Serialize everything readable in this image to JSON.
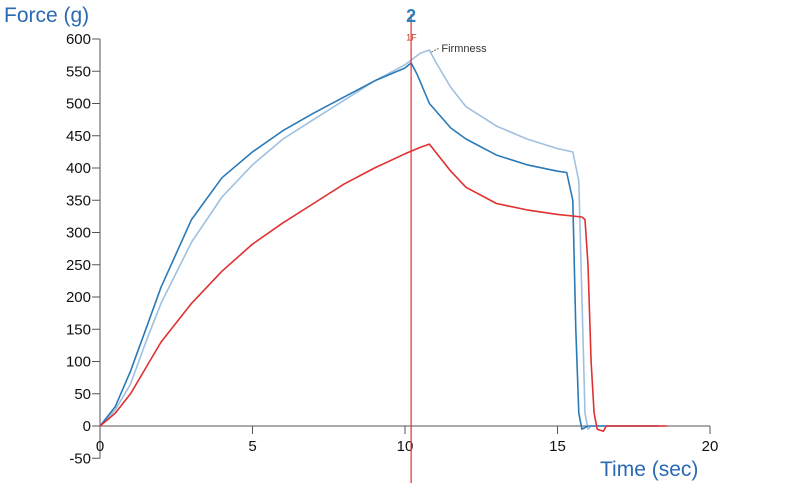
{
  "chart_data": {
    "type": "line",
    "title": "",
    "ylabel": "Force (g)",
    "xlabel": "Time (sec)",
    "xlim": [
      0,
      20
    ],
    "ylim": [
      -50,
      600
    ],
    "x_ticks": [
      0,
      5,
      10,
      15,
      20
    ],
    "y_ticks": [
      -50,
      0,
      50,
      100,
      150,
      200,
      250,
      300,
      350,
      400,
      450,
      500,
      550,
      600
    ],
    "grid": false,
    "series": [
      {
        "color": "#9fc0e0",
        "points": [
          [
            0,
            0
          ],
          [
            0.5,
            25
          ],
          [
            1,
            65
          ],
          [
            1.5,
            130
          ],
          [
            2,
            190
          ],
          [
            3,
            285
          ],
          [
            4,
            355
          ],
          [
            5,
            405
          ],
          [
            6,
            445
          ],
          [
            7,
            475
          ],
          [
            8,
            505
          ],
          [
            9,
            535
          ],
          [
            10,
            560
          ],
          [
            10.5,
            578
          ],
          [
            10.8,
            583
          ],
          [
            11,
            565
          ],
          [
            11.5,
            525
          ],
          [
            12,
            495
          ],
          [
            13,
            465
          ],
          [
            14,
            445
          ],
          [
            15,
            430
          ],
          [
            15.5,
            425
          ],
          [
            15.7,
            380
          ],
          [
            15.8,
            200
          ],
          [
            15.9,
            20
          ],
          [
            16.0,
            -5
          ],
          [
            16.1,
            0
          ],
          [
            18.5,
            0
          ]
        ]
      },
      {
        "color": "#2a7ab8",
        "points": [
          [
            0,
            0
          ],
          [
            0.5,
            30
          ],
          [
            1,
            85
          ],
          [
            1.5,
            150
          ],
          [
            2,
            215
          ],
          [
            3,
            320
          ],
          [
            4,
            385
          ],
          [
            5,
            425
          ],
          [
            6,
            458
          ],
          [
            7,
            485
          ],
          [
            8,
            510
          ],
          [
            9,
            535
          ],
          [
            10,
            555
          ],
          [
            10.2,
            563
          ],
          [
            10.4,
            545
          ],
          [
            10.8,
            500
          ],
          [
            11.5,
            462
          ],
          [
            12,
            445
          ],
          [
            13,
            420
          ],
          [
            14,
            405
          ],
          [
            15,
            395
          ],
          [
            15.3,
            393
          ],
          [
            15.5,
            350
          ],
          [
            15.6,
            150
          ],
          [
            15.7,
            20
          ],
          [
            15.8,
            -5
          ],
          [
            16.0,
            0
          ],
          [
            18.3,
            0
          ]
        ]
      },
      {
        "color": "#e03030",
        "points": [
          [
            0,
            0
          ],
          [
            0.5,
            20
          ],
          [
            1,
            50
          ],
          [
            1.5,
            90
          ],
          [
            2,
            130
          ],
          [
            3,
            190
          ],
          [
            4,
            240
          ],
          [
            5,
            282
          ],
          [
            6,
            315
          ],
          [
            7,
            345
          ],
          [
            8,
            375
          ],
          [
            9,
            400
          ],
          [
            10,
            422
          ],
          [
            10.5,
            432
          ],
          [
            10.8,
            437
          ],
          [
            11,
            425
          ],
          [
            11.5,
            395
          ],
          [
            12,
            370
          ],
          [
            13,
            345
          ],
          [
            14,
            335
          ],
          [
            15,
            328
          ],
          [
            15.8,
            324
          ],
          [
            15.9,
            320
          ],
          [
            16.0,
            250
          ],
          [
            16.1,
            100
          ],
          [
            16.2,
            20
          ],
          [
            16.3,
            -5
          ],
          [
            16.5,
            -8
          ],
          [
            16.6,
            0
          ],
          [
            18.6,
            0
          ]
        ]
      }
    ],
    "markers": [
      {
        "x": 10.2,
        "label": "2",
        "color": "#e03030"
      }
    ],
    "annotations": [
      {
        "text": "Firmness",
        "x": 10.8,
        "y": 583
      },
      {
        "text": "1F",
        "x": 10.2,
        "y": 598
      }
    ]
  }
}
